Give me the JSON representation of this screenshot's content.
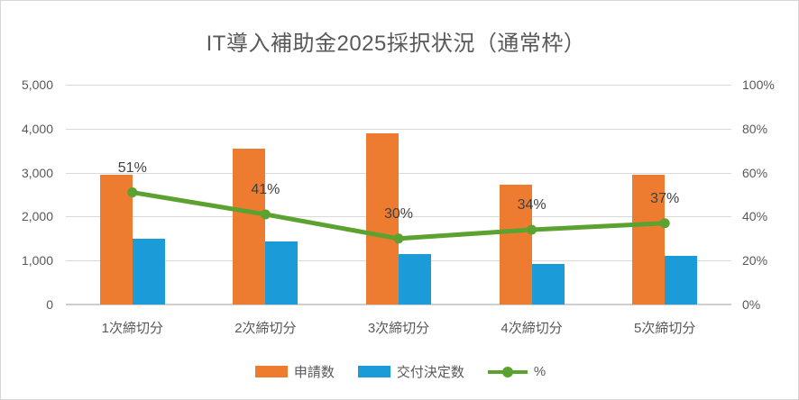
{
  "window": {
    "background": "#ffffff",
    "border_color": "#d6d6d6"
  },
  "colors": {
    "bar_applications": "#ED7C31",
    "bar_grants": "#1B9CD8",
    "line_percent": "#5BA230",
    "title_text": "#595959",
    "axis_text": "#595959",
    "data_label_text": "#404040",
    "gridline": "#D9D9D9",
    "axis_line": "#CFCFCF"
  },
  "chart_data": {
    "type": "bar",
    "subtype": "clustered-bar-with-line-combo",
    "title": "IT導入補助金2025採択状況（通常枠）",
    "categories": [
      "1次締切分",
      "2次締切分",
      "3次締切分",
      "4次締切分",
      "5次締切分"
    ],
    "series": [
      {
        "name": "申請数",
        "type": "bar",
        "axis": "left",
        "color": "#ED7C31",
        "values": [
          2950,
          3550,
          3890,
          2720,
          2960
        ]
      },
      {
        "name": "交付決定数",
        "type": "bar",
        "axis": "left",
        "color": "#1B9CD8",
        "values": [
          1500,
          1430,
          1150,
          920,
          1100
        ]
      },
      {
        "name": "%",
        "type": "line",
        "axis": "right",
        "color": "#5BA230",
        "values": [
          51,
          41,
          30,
          34,
          37
        ],
        "point_labels": [
          "51%",
          "41%",
          "30%",
          "34%",
          "37%"
        ]
      }
    ],
    "left_axis": {
      "min": 0,
      "max": 5000,
      "tick_labels": [
        "0",
        "1,000",
        "2,000",
        "3,000",
        "4,000",
        "5,000"
      ]
    },
    "right_axis": {
      "min": 0,
      "max": 100,
      "tick_labels": [
        "0%",
        "20%",
        "40%",
        "60%",
        "80%",
        "100%"
      ]
    },
    "grid": true,
    "legend_position": "bottom",
    "xlabel": "",
    "ylabel": ""
  }
}
